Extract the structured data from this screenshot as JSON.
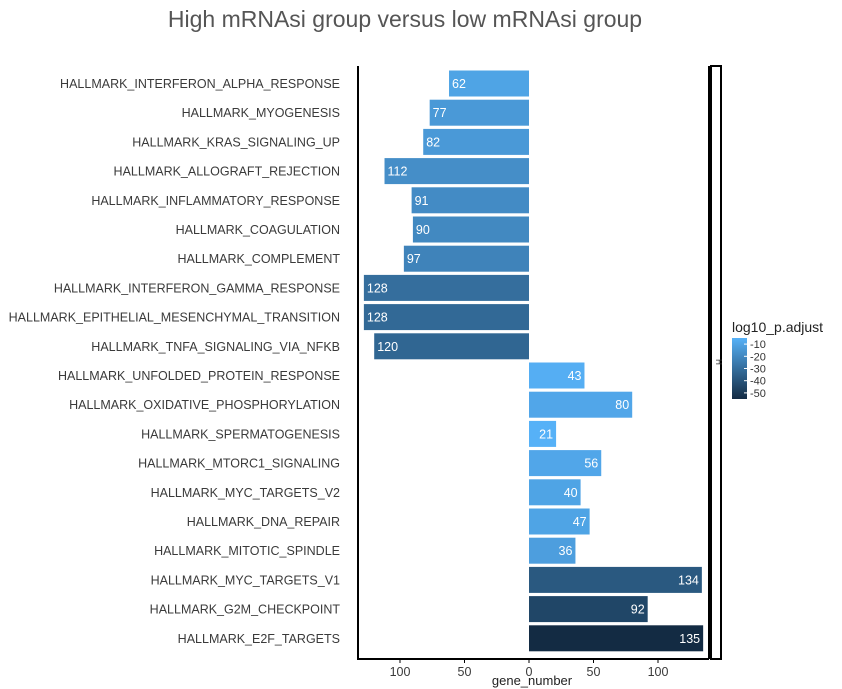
{
  "chart_data": {
    "type": "bar",
    "orientation": "horizontal-diverging",
    "title": "High mRNAsi group versus low mRNAsi group",
    "xlabel": "gene_number",
    "x_ticks": [
      "100",
      "50",
      "0",
      "50",
      "100"
    ],
    "xlim": [
      -130,
      137
    ],
    "categories": [
      "HALLMARK_INTERFERON_ALPHA_RESPONSE",
      "HALLMARK_MYOGENESIS",
      "HALLMARK_KRAS_SIGNALING_UP",
      "HALLMARK_ALLOGRAFT_REJECTION",
      "HALLMARK_INFLAMMATORY_RESPONSE",
      "HALLMARK_COAGULATION",
      "HALLMARK_COMPLEMENT",
      "HALLMARK_INTERFERON_GAMMA_RESPONSE",
      "HALLMARK_EPITHELIAL_MESENCHYMAL_TRANSITION",
      "HALLMARK_TNFA_SIGNALING_VIA_NFKB",
      "HALLMARK_UNFOLDED_PROTEIN_RESPONSE",
      "HALLMARK_OXIDATIVE_PHOSPHORYLATION",
      "HALLMARK_SPERMATOGENESIS",
      "HALLMARK_MTORC1_SIGNALING",
      "HALLMARK_MYC_TARGETS_V2",
      "HALLMARK_DNA_REPAIR",
      "HALLMARK_MITOTIC_SPINDLE",
      "HALLMARK_MYC_TARGETS_V1",
      "HALLMARK_G2M_CHECKPOINT",
      "HALLMARK_E2F_TARGETS"
    ],
    "values": [
      -62,
      -77,
      -82,
      -112,
      -91,
      -90,
      -97,
      -128,
      -128,
      -120,
      43,
      80,
      21,
      56,
      40,
      47,
      36,
      134,
      92,
      135
    ],
    "labels": [
      "62",
      "77",
      "82",
      "112",
      "91",
      "90",
      "97",
      "128",
      "128",
      "120",
      "43",
      "80",
      "21",
      "56",
      "40",
      "47",
      "36",
      "134",
      "92",
      "135"
    ],
    "log10_p_adjust": [
      -10,
      -14,
      -14,
      -18,
      -19,
      -20,
      -22,
      -30,
      -32,
      -33,
      -6,
      -9,
      -5,
      -9,
      -10,
      -10,
      -12,
      -38,
      -45,
      -55
    ],
    "legend": {
      "title": "log10_p.adjust",
      "ticks": [
        "-10",
        "-20",
        "-30",
        "-40",
        "-50"
      ],
      "tick_values": [
        -10,
        -20,
        -30,
        -40,
        -50
      ],
      "range": [
        -55,
        -5
      ],
      "colors": [
        "#132b43",
        "#56b1f7"
      ],
      "placement": "right"
    },
    "facet_strip": "H"
  }
}
